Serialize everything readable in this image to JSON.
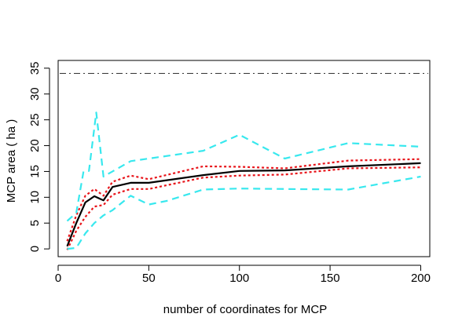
{
  "chart_data": {
    "type": "line",
    "title": "",
    "xlabel": "number of coordinates for MCP",
    "ylabel": "MCP area ( ha )",
    "xlim": [
      0,
      205
    ],
    "ylim": [
      -1.5,
      36.5
    ],
    "xticks": [
      0,
      50,
      100,
      150,
      200
    ],
    "yticks": [
      0,
      5,
      10,
      15,
      20,
      25,
      30,
      35
    ],
    "grid": false,
    "legend": "none",
    "reference_line": {
      "y": 34,
      "color": "#333333",
      "style": "dotdash"
    },
    "series": [
      {
        "role": "mean",
        "color": "#000000",
        "style": "solid",
        "x": [
          5,
          10,
          15,
          20,
          25,
          30,
          40,
          50,
          80,
          100,
          125,
          160,
          200
        ],
        "y": [
          0.5,
          5,
          9,
          10.2,
          9.4,
          12,
          12.8,
          12.8,
          14.3,
          15.1,
          15.2,
          16,
          16.6
        ]
      },
      {
        "role": "upper-inner",
        "color": "#e8141a",
        "style": "dotted",
        "x": [
          5,
          10,
          15,
          20,
          25,
          30,
          40,
          50,
          80,
          100,
          125,
          160,
          200
        ],
        "y": [
          1.5,
          6.5,
          10.3,
          11.6,
          10.3,
          13,
          14.2,
          13.5,
          16,
          15.9,
          15.6,
          17.1,
          17.4
        ]
      },
      {
        "role": "lower-inner",
        "color": "#e8141a",
        "style": "dotted",
        "x": [
          5,
          10,
          15,
          20,
          25,
          30,
          40,
          50,
          80,
          100,
          125,
          160,
          200
        ],
        "y": [
          -0.2,
          3.5,
          6.2,
          8.2,
          8.5,
          10.5,
          11.6,
          11.6,
          13.8,
          14.2,
          14.4,
          15.6,
          15.8
        ]
      },
      {
        "role": "upper-outer",
        "color": "#38e8ee",
        "style": "dashed",
        "x": [
          5,
          10,
          14,
          17,
          21,
          25,
          30,
          40,
          50,
          80,
          100,
          125,
          160,
          200
        ],
        "y": [
          5.4,
          7,
          15,
          15.1,
          26.4,
          14,
          15,
          17,
          17.5,
          19,
          22.1,
          17.5,
          20.5,
          19.8
        ]
      },
      {
        "role": "lower-outer",
        "color": "#38e8ee",
        "style": "dashed",
        "x": [
          5,
          10,
          15,
          20,
          25,
          30,
          40,
          50,
          60,
          80,
          100,
          125,
          160,
          200
        ],
        "y": [
          0,
          0.2,
          3,
          5,
          6.5,
          7.5,
          10.3,
          8.6,
          9.3,
          11.5,
          11.7,
          11.6,
          11.5,
          14
        ]
      }
    ]
  }
}
